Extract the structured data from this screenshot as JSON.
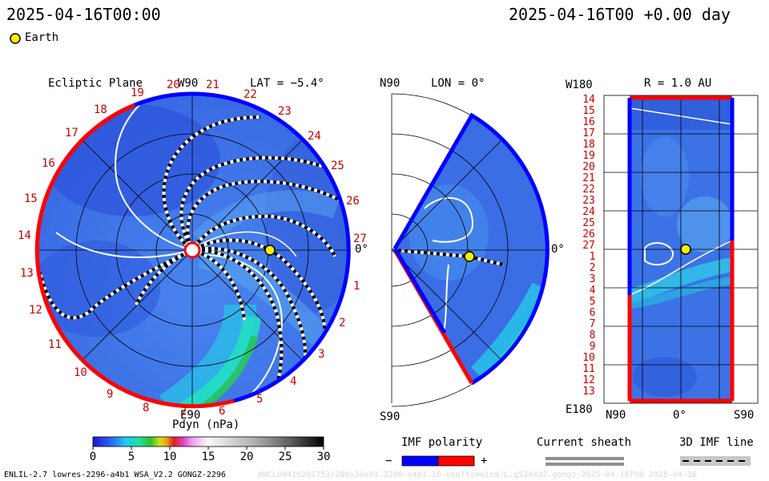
{
  "header": {
    "datetime_left": "2025-04-16T00:00",
    "datetime_right": "2025-04-16T00 +0.00 day"
  },
  "legend": {
    "earth_label": "Earth",
    "earth_color": "#ffee00"
  },
  "panel_ecliptic": {
    "title": "Ecliptic Plane",
    "lat_label": "LAT = −5.4°",
    "top_label": "W90",
    "bottom_label": "E90",
    "right_label": "0°",
    "carrington_labels": [
      "19",
      "20",
      "21",
      "22",
      "23",
      "24",
      "25",
      "26",
      "27",
      "1",
      "2",
      "3",
      "4",
      "5",
      "6",
      "7",
      "8",
      "9",
      "10",
      "11",
      "12",
      "13",
      "14",
      "15",
      "16",
      "17",
      "18"
    ]
  },
  "panel_meridional": {
    "top_label": "N90",
    "lon_label": "LON = 0°",
    "right_label": "0°",
    "bottom_label": "S90"
  },
  "panel_rmap": {
    "r_label": "R = 1.0 AU",
    "top_left_label": "W180",
    "bottom_left_label": "E180",
    "bottom_labels": [
      "N90",
      "0°",
      "S90"
    ],
    "rotation_labels": [
      "14",
      "15",
      "16",
      "17",
      "18",
      "19",
      "20",
      "21",
      "22",
      "23",
      "24",
      "25",
      "26",
      "27",
      "1",
      "2",
      "3",
      "4",
      "5",
      "6",
      "7",
      "8",
      "9",
      "10",
      "11",
      "12",
      "13"
    ]
  },
  "colorbar": {
    "title": "Pdyn (nPa)",
    "ticks": [
      "0",
      "5",
      "10",
      "15",
      "20",
      "25",
      "30"
    ],
    "min": 0,
    "max": 30
  },
  "imf_polarity": {
    "title": "IMF polarity",
    "minus": "−",
    "plus": "+",
    "neg_color": "#0000ff",
    "pos_color": "#ff0000"
  },
  "current_sheath": {
    "title": "Current sheath"
  },
  "imf_line": {
    "title": "3D IMF line"
  },
  "footer": {
    "model_info": "ENLIL-2.7 lowres-2296-a4b1 WSA_V2.2 GONGZ-2296",
    "run_info": "UNCLO0416201753/208x30x01.2296-a4b1.16-nsoftonnied-L.g53d4d2.gongz-2025-04-16T00   2025-04-16"
  },
  "colors": {
    "background_field": "#3a6ee6",
    "polarity_negative": "#0000ff",
    "polarity_positive": "#ff0000"
  }
}
